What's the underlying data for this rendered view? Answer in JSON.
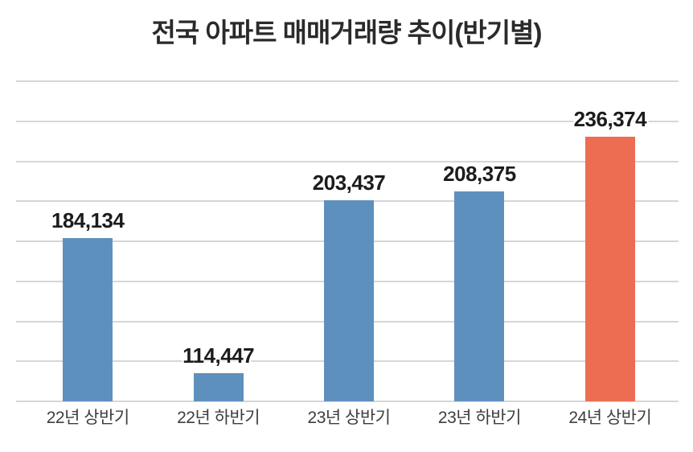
{
  "colors": {
    "background": "#ffffff",
    "bar_default": "#5e90bd",
    "bar_highlight": "#ed6d52",
    "gridline": "#d6d6d6",
    "title_text": "#2a2a2a",
    "value_label_text": "#1c1c1c",
    "axis_label_text": "#3e3e3e"
  },
  "chart_data": {
    "type": "bar",
    "title": "전국 아파트 매매거래량 추이(반기별)",
    "categories": [
      "22년 상반기",
      "22년 하반기",
      "23년 상반기",
      "23년 하반기",
      "24년 상반기"
    ],
    "values": [
      184134,
      114447,
      203437,
      208375,
      236374
    ],
    "value_labels": [
      "184,134",
      "114,447",
      "203,437",
      "208,375",
      "236,374"
    ],
    "highlight_index": 4,
    "ylim": [
      100000,
      265000
    ],
    "gridline_count": 9,
    "grid": "horizontal-only",
    "legend_position": "none",
    "xlabel": "",
    "ylabel": ""
  }
}
